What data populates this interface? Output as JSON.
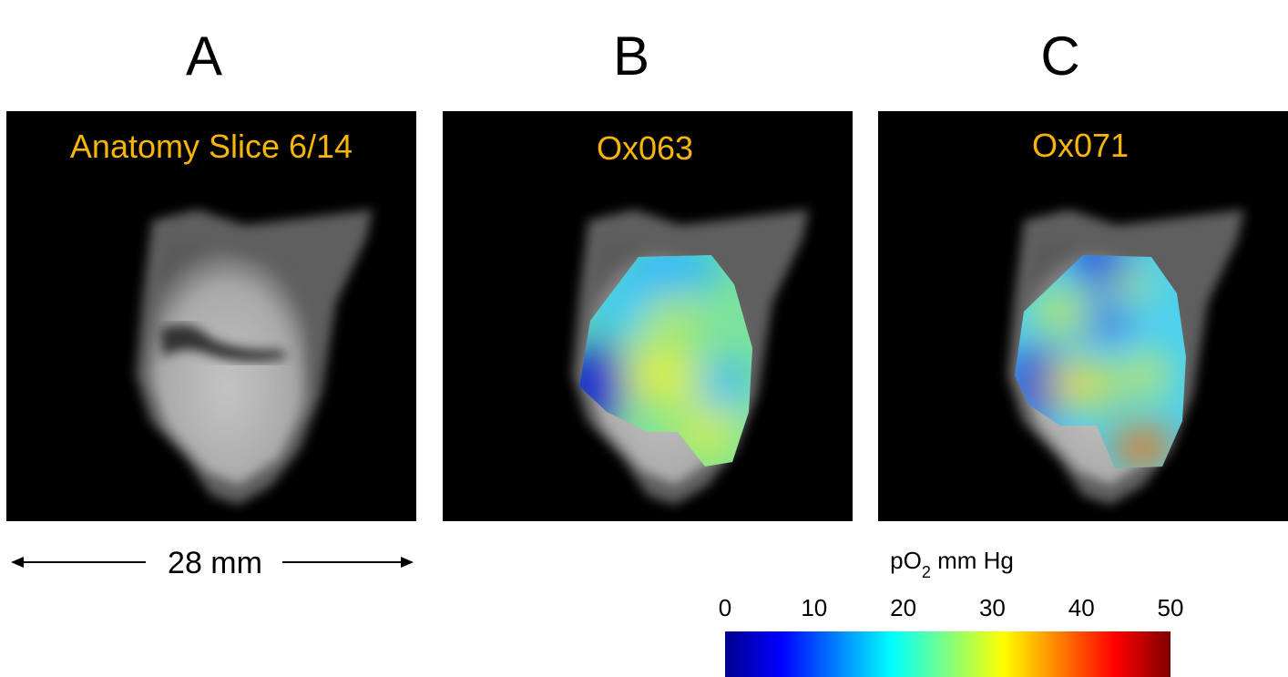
{
  "panels": [
    {
      "letter": "A",
      "caption": "Anatomy Slice 6/14"
    },
    {
      "letter": "B",
      "caption": "Ox063"
    },
    {
      "letter": "C",
      "caption": "Ox071"
    }
  ],
  "scale_bar": "28 mm",
  "colorbar": {
    "label_parts": [
      "pO",
      "2",
      " mm Hg"
    ],
    "lim": [
      0,
      50
    ],
    "ticks": [
      0,
      10,
      20,
      30,
      40,
      50
    ]
  }
}
